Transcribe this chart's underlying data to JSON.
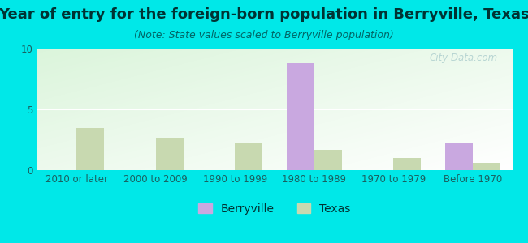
{
  "title": "Year of entry for the foreign-born population in Berryville, Texas",
  "subtitle": "(Note: State values scaled to Berryville population)",
  "categories": [
    "2010 or later",
    "2000 to 2009",
    "1990 to 1999",
    "1980 to 1989",
    "1970 to 1979",
    "Before 1970"
  ],
  "berryville": [
    0,
    0,
    0,
    8.8,
    0,
    2.2
  ],
  "texas": [
    3.5,
    2.7,
    2.2,
    1.7,
    1.0,
    0.6
  ],
  "berryville_color": "#c9a8e0",
  "texas_color": "#c8d9b0",
  "background_color": "#00e8e8",
  "ylim": [
    0,
    10
  ],
  "yticks": [
    0,
    5,
    10
  ],
  "bar_width": 0.35,
  "title_fontsize": 13,
  "subtitle_fontsize": 9,
  "tick_fontsize": 8.5,
  "legend_fontsize": 10,
  "watermark_text": "City-Data.com"
}
